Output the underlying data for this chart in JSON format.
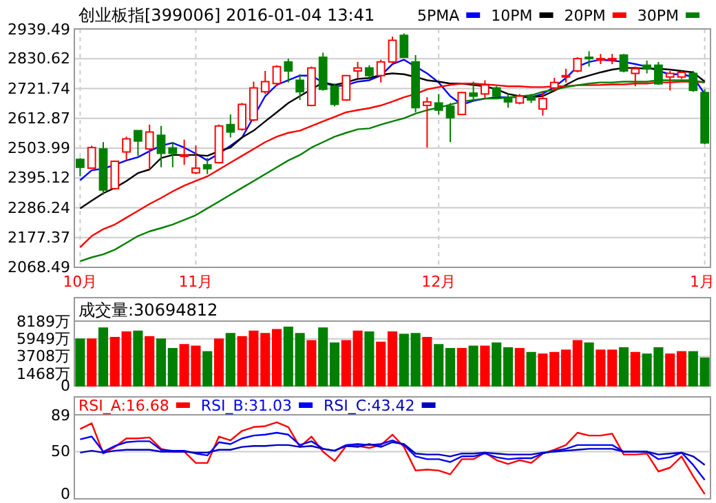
{
  "chart_data": [
    {
      "type": "candlestick",
      "title": "创业板指[399006] 2016-01-04 13:41",
      "categories": [
        "10月",
        null,
        null,
        null,
        null,
        null,
        null,
        null,
        null,
        null,
        "11月",
        null,
        null,
        null,
        null,
        null,
        null,
        null,
        null,
        null,
        null,
        null,
        null,
        null,
        null,
        null,
        null,
        null,
        null,
        null,
        null,
        "12月",
        null,
        null,
        null,
        null,
        null,
        null,
        null,
        null,
        null,
        null,
        null,
        null,
        null,
        null,
        null,
        null,
        null,
        null,
        null,
        null,
        null,
        null,
        "1月"
      ],
      "ohlc": [
        [
          2463,
          2468,
          2401,
          2434
        ],
        [
          2431,
          2513,
          2429,
          2506
        ],
        [
          2501,
          2526,
          2334,
          2351
        ],
        [
          2356,
          2459,
          2352,
          2456
        ],
        [
          2490,
          2546,
          2459,
          2538
        ],
        [
          2568,
          2568,
          2476,
          2530
        ],
        [
          2501,
          2590,
          2426,
          2563
        ],
        [
          2551,
          2585,
          2434,
          2485
        ],
        [
          2505,
          2526,
          2434,
          2485
        ],
        [
          2476,
          2535,
          2443,
          2479
        ],
        [
          2414,
          2513,
          2409,
          2431
        ],
        [
          2443,
          2468,
          2409,
          2429
        ],
        [
          2451,
          2590,
          2448,
          2585
        ],
        [
          2590,
          2627,
          2543,
          2563
        ],
        [
          2573,
          2669,
          2568,
          2664
        ],
        [
          2607,
          2747,
          2602,
          2724
        ],
        [
          2710,
          2786,
          2702,
          2747
        ],
        [
          2740,
          2807,
          2730,
          2802
        ],
        [
          2819,
          2831,
          2744,
          2786
        ],
        [
          2752,
          2774,
          2680,
          2710
        ],
        [
          2660,
          2802,
          2657,
          2797
        ],
        [
          2836,
          2853,
          2714,
          2719
        ],
        [
          2730,
          2740,
          2657,
          2664
        ],
        [
          2680,
          2769,
          2677,
          2769
        ],
        [
          2786,
          2819,
          2761,
          2797
        ],
        [
          2797,
          2807,
          2761,
          2769
        ],
        [
          2769,
          2827,
          2744,
          2819
        ],
        [
          2819,
          2911,
          2811,
          2898
        ],
        [
          2916,
          2923,
          2836,
          2836
        ],
        [
          2819,
          2844,
          2635,
          2652
        ],
        [
          2660,
          2690,
          2506,
          2673
        ],
        [
          2669,
          2702,
          2627,
          2643
        ],
        [
          2657,
          2669,
          2526,
          2615
        ],
        [
          2627,
          2710,
          2627,
          2707
        ],
        [
          2705,
          2747,
          2677,
          2694
        ],
        [
          2702,
          2752,
          2685,
          2735
        ],
        [
          2724,
          2730,
          2690,
          2694
        ],
        [
          2685,
          2702,
          2652,
          2673
        ],
        [
          2669,
          2702,
          2664,
          2694
        ],
        [
          2690,
          2702,
          2669,
          2680
        ],
        [
          2647,
          2710,
          2623,
          2685
        ],
        [
          2724,
          2761,
          2714,
          2744
        ],
        [
          2764,
          2794,
          2744,
          2769
        ],
        [
          2786,
          2836,
          2781,
          2831
        ],
        [
          2836,
          2858,
          2802,
          2831
        ],
        [
          2827,
          2848,
          2811,
          2831
        ],
        [
          2827,
          2848,
          2811,
          2831
        ],
        [
          2844,
          2848,
          2781,
          2786
        ],
        [
          2777,
          2802,
          2730,
          2794
        ],
        [
          2807,
          2824,
          2777,
          2794
        ],
        [
          2807,
          2819,
          2735,
          2739
        ],
        [
          2764,
          2786,
          2715,
          2777
        ],
        [
          2764,
          2786,
          2757,
          2781
        ],
        [
          2777,
          2786,
          2710,
          2715
        ],
        [
          2707,
          2719,
          2518,
          2523
        ]
      ],
      "series": [
        {
          "name": "5PMA",
          "type": "line",
          "color": "#0000ff",
          "values": [
            2387,
            2423,
            2429,
            2443,
            2459,
            2471,
            2493,
            2513,
            2523,
            2506,
            2484,
            2459,
            2484,
            2513,
            2543,
            2618,
            2694,
            2735,
            2752,
            2769,
            2769,
            2744,
            2730,
            2734,
            2747,
            2752,
            2769,
            2811,
            2827,
            2802,
            2777,
            2744,
            2694,
            2663,
            2677,
            2685,
            2690,
            2690,
            2690,
            2690,
            2702,
            2727,
            2760,
            2802,
            2819,
            2827,
            2824,
            2819,
            2811,
            2802,
            2786,
            2774,
            2774,
            2764,
            2702
          ]
        },
        {
          "name": "10PM",
          "type": "line",
          "color": "#000000",
          "values": [
            2284,
            2312,
            2339,
            2359,
            2384,
            2413,
            2426,
            2468,
            2479,
            2479,
            2479,
            2476,
            2493,
            2506,
            2543,
            2568,
            2602,
            2635,
            2669,
            2694,
            2719,
            2744,
            2735,
            2744,
            2757,
            2760,
            2772,
            2777,
            2774,
            2764,
            2752,
            2747,
            2740,
            2740,
            2735,
            2730,
            2719,
            2702,
            2694,
            2690,
            2694,
            2714,
            2735,
            2757,
            2769,
            2781,
            2791,
            2797,
            2797,
            2794,
            2794,
            2791,
            2786,
            2781,
            2747
          ]
        },
        {
          "name": "20PM",
          "type": "line",
          "color": "#ff0000",
          "values": [
            2142,
            2183,
            2208,
            2225,
            2250,
            2275,
            2300,
            2322,
            2346,
            2367,
            2384,
            2401,
            2426,
            2451,
            2476,
            2501,
            2526,
            2546,
            2560,
            2568,
            2585,
            2602,
            2618,
            2635,
            2643,
            2650,
            2660,
            2674,
            2690,
            2702,
            2719,
            2727,
            2735,
            2740,
            2740,
            2737,
            2734,
            2730,
            2730,
            2727,
            2727,
            2730,
            2730,
            2734,
            2734,
            2735,
            2737,
            2737,
            2740,
            2740,
            2744,
            2744,
            2747,
            2747,
            2744
          ]
        },
        {
          "name": "30PM",
          "type": "line",
          "color": "#008000",
          "values": [
            2091,
            2105,
            2116,
            2133,
            2158,
            2183,
            2200,
            2212,
            2225,
            2242,
            2259,
            2284,
            2309,
            2334,
            2359,
            2384,
            2409,
            2434,
            2459,
            2479,
            2506,
            2526,
            2546,
            2560,
            2573,
            2576,
            2590,
            2602,
            2613,
            2630,
            2643,
            2652,
            2663,
            2674,
            2680,
            2685,
            2685,
            2689,
            2694,
            2697,
            2710,
            2717,
            2727,
            2734,
            2740,
            2744,
            2744,
            2747,
            2747,
            2747,
            2752,
            2752,
            2752,
            2752,
            2744
          ]
        }
      ],
      "ylim": [
        2068.49,
        2939.49
      ],
      "yticks": [
        2068.49,
        2177.37,
        2286.24,
        2395.12,
        2503.99,
        2612.87,
        2721.74,
        2830.62,
        2939.49
      ],
      "grid": true,
      "legend": "top right"
    },
    {
      "type": "bar",
      "title": "成交量:30694812",
      "categories": [
        null,
        null,
        null,
        null,
        null,
        null,
        null,
        null,
        null,
        null,
        null,
        null,
        null,
        null,
        null,
        null,
        null,
        null,
        null,
        null,
        null,
        null,
        null,
        null,
        null,
        null,
        null,
        null,
        null,
        null,
        null,
        null,
        null,
        null,
        null,
        null,
        null,
        null,
        null,
        null,
        null,
        null,
        null,
        null,
        null,
        null,
        null,
        null,
        null,
        null,
        null,
        null,
        null,
        null,
        null
      ],
      "values": [
        5900,
        5900,
        7300,
        6100,
        6800,
        6900,
        6200,
        5900,
        4700,
        5200,
        5000,
        4300,
        5900,
        6600,
        6200,
        6900,
        6600,
        7100,
        7400,
        6600,
        5700,
        7300,
        5400,
        5700,
        6900,
        6800,
        5500,
        6800,
        6500,
        6600,
        6100,
        5200,
        4700,
        4700,
        5000,
        5000,
        5400,
        4800,
        4700,
        4200,
        4000,
        4200,
        4500,
        5700,
        5400,
        4500,
        4500,
        4800,
        4200,
        4000,
        4800,
        4000,
        4300,
        4300,
        3500
      ],
      "colors": [
        "#008000",
        "#ff0000",
        "#008000",
        "#ff0000",
        "#ff0000",
        "#008000",
        "#ff0000",
        "#008000",
        "#008000",
        "#ff0000",
        "#ff0000",
        "#008000",
        "#ff0000",
        "#008000",
        "#ff0000",
        "#ff0000",
        "#ff0000",
        "#ff0000",
        "#008000",
        "#008000",
        "#ff0000",
        "#008000",
        "#008000",
        "#ff0000",
        "#ff0000",
        "#008000",
        "#ff0000",
        "#ff0000",
        "#008000",
        "#008000",
        "#ff0000",
        "#008000",
        "#008000",
        "#ff0000",
        "#008000",
        "#ff0000",
        "#008000",
        "#008000",
        "#ff0000",
        "#008000",
        "#ff0000",
        "#ff0000",
        "#ff0000",
        "#ff0000",
        "#008000",
        "#ff0000",
        "#ff0000",
        "#008000",
        "#ff0000",
        "#008000",
        "#008000",
        "#ff0000",
        "#ff0000",
        "#008000",
        "#008000"
      ],
      "ylim": [
        0,
        8189
      ],
      "yticks": [
        0,
        {
          "value": 1468,
          "label": "1468万"
        },
        {
          "value": 3708,
          "label": "3708万"
        },
        {
          "value": 5949,
          "label": "5949万"
        },
        {
          "value": 8189,
          "label": "8189万"
        }
      ],
      "grid": "y",
      "tick_labels": "y"
    },
    {
      "type": "line",
      "categories": [
        null,
        null,
        null,
        null,
        null,
        null,
        null,
        null,
        null,
        null,
        null,
        null,
        null,
        null,
        null,
        null,
        null,
        null,
        null,
        null,
        null,
        null,
        null,
        null,
        null,
        null,
        null,
        null,
        null,
        null,
        null,
        null,
        null,
        null,
        null,
        null,
        null,
        null,
        null,
        null,
        null,
        null,
        null,
        null,
        null,
        null,
        null,
        null,
        null,
        null,
        null,
        null,
        null,
        null,
        null
      ],
      "series": [
        {
          "name": "RSI_A:16.68",
          "color": "#ff0000",
          "values": [
            74,
            80,
            48,
            55,
            64,
            64,
            65,
            53,
            50,
            50,
            38,
            38,
            66,
            62,
            72,
            76,
            77,
            81,
            76,
            55,
            66,
            50,
            40,
            56,
            56,
            54,
            57,
            68,
            55,
            30,
            31,
            30,
            26,
            42,
            42,
            49,
            41,
            37,
            41,
            38,
            48,
            52,
            57,
            70,
            67,
            67,
            69,
            47,
            47,
            48,
            29,
            33,
            45,
            24,
            5
          ]
        },
        {
          "name": "RSI_B:31.03",
          "color": "#0000ff",
          "values": [
            63,
            66,
            50,
            56,
            60,
            61,
            61,
            52,
            51,
            51,
            48,
            46,
            60,
            58,
            64,
            67,
            68,
            70,
            68,
            57,
            61,
            53,
            51,
            57,
            58,
            57,
            58,
            62,
            57,
            45,
            42,
            42,
            39,
            45,
            45,
            48,
            44,
            42,
            43,
            43,
            48,
            51,
            53,
            57,
            57,
            57,
            57,
            50,
            50,
            50,
            42,
            44,
            49,
            36,
            20
          ]
        },
        {
          "name": "RSI_C:43.42",
          "color": "#0000c0",
          "values": [
            49,
            51,
            49,
            51,
            52,
            52,
            52,
            50,
            50,
            50,
            49,
            49,
            52,
            52,
            55,
            56,
            56,
            57,
            57,
            55,
            56,
            53,
            51,
            56,
            55,
            58,
            55,
            60,
            58,
            48,
            47,
            47,
            45,
            48,
            48,
            49,
            48,
            47,
            47,
            47,
            49,
            50,
            51,
            52,
            53,
            53,
            53,
            50,
            50,
            50,
            47,
            48,
            49,
            45,
            36
          ]
        }
      ],
      "ylim": [
        0,
        89
      ],
      "yticks": [
        0,
        50,
        89
      ],
      "ref_lines": [
        {
          "axis": "y",
          "value": 50,
          "color": "#cccccc"
        }
      ],
      "legend": "top left",
      "tick_labels": "y"
    }
  ]
}
